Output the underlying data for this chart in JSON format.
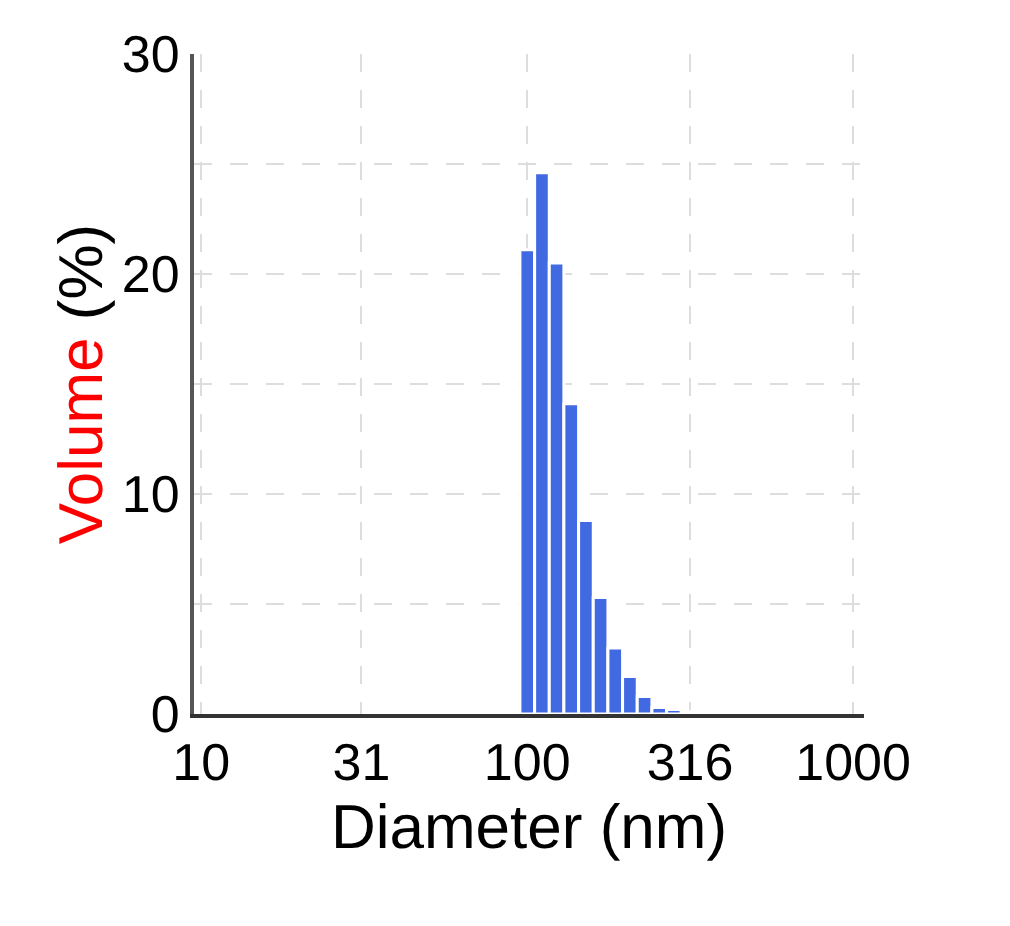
{
  "chart_data": {
    "type": "histogram",
    "xlabel": "Diameter (nm)",
    "ylabel": "Volume (%)",
    "log": "x",
    "color": "#4169e1",
    "bins": [
      95,
      105.4,
      116.9,
      129.6,
      143.8,
      159.5,
      176.9,
      196.2,
      217.6,
      241.4,
      267.8,
      297.0,
      329.4
    ],
    "values": [
      21.1,
      24.6,
      20.5,
      14.1,
      8.8,
      5.3,
      3.0,
      1.7,
      0.8,
      0.3,
      0.2,
      0.1
    ],
    "xlim": [
      9.5,
      1080
    ],
    "ylim": [
      0,
      30
    ],
    "xticks": [
      10,
      31,
      100,
      316,
      1000
    ],
    "yticks": [
      0,
      {
        "value": 5,
        "label": null
      },
      10,
      {
        "value": 15,
        "label": null
      },
      20,
      {
        "value": 25,
        "label": null
      },
      30
    ],
    "grid": true
  }
}
